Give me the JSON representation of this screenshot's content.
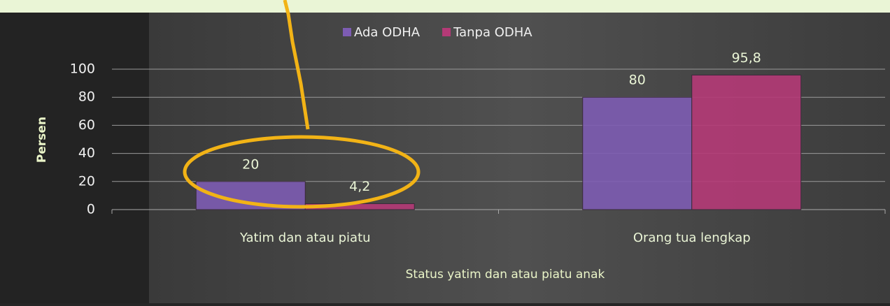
{
  "chart_data": {
    "type": "bar",
    "y_label": "Persen",
    "x_label": "Status yatim dan atau piatu anak",
    "categories": [
      "Yatim dan atau piatu",
      "Orang tua lengkap"
    ],
    "series": [
      {
        "name": "Ada ODHA",
        "color": "#7d5cb3",
        "values": [
          20,
          80
        ],
        "value_labels": [
          "20",
          "80"
        ]
      },
      {
        "name": "Tanpa ODHA",
        "color": "#b53a77",
        "values": [
          4.2,
          95.8
        ],
        "value_labels": [
          "4,2",
          "95,8"
        ]
      }
    ],
    "ylim": [
      0,
      100
    ],
    "yticks": [
      0,
      20,
      40,
      60,
      80,
      100
    ],
    "grid": true,
    "legend": "top"
  }
}
